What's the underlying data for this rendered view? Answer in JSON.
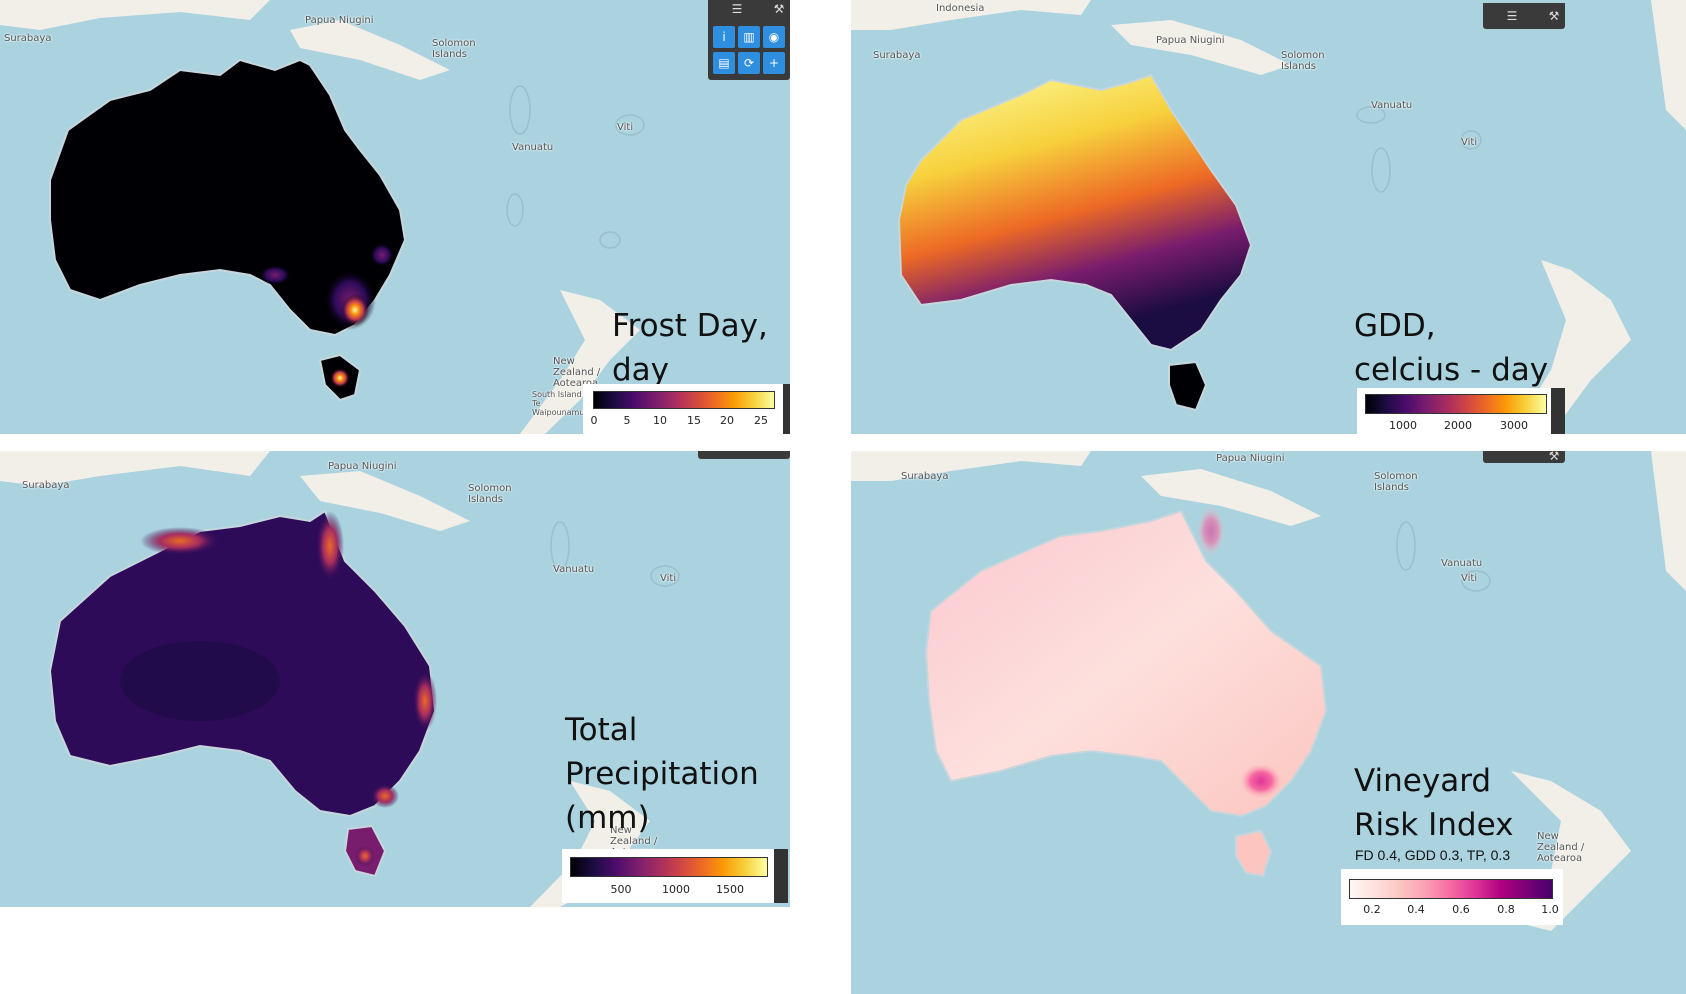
{
  "colors": {
    "ocean": "#aad3df",
    "land": "#f2efe9",
    "inferno": [
      "#000004",
      "#1b0c41",
      "#4a0c6b",
      "#781c6d",
      "#a52c60",
      "#cf4446",
      "#ed6925",
      "#fb9b06",
      "#f7d13d",
      "#fcffa4"
    ],
    "pink": [
      "#fff7f3",
      "#fde0dd",
      "#fcc5c0",
      "#fa9fb5",
      "#f768a1",
      "#dd3497",
      "#ae017e",
      "#7a0177",
      "#49006a"
    ]
  },
  "panels": [
    {
      "id": "frost",
      "title_lines": [
        "Frost Day,",
        "day"
      ],
      "subtitle": "",
      "colormap": "inferno",
      "legend_ticks": [
        "0",
        "5",
        "10",
        "15",
        "20",
        "25"
      ],
      "places": [
        "Surabaya",
        "Papua Niugini",
        "Solomon Islands",
        "Vanuatu",
        "Viti",
        "New Zealand / Aotearoa",
        "South Island / Te Waipounamu"
      ]
    },
    {
      "id": "gdd",
      "title_lines": [
        "GDD,",
        "celcius - day"
      ],
      "subtitle": "",
      "colormap": "inferno",
      "legend_ticks": [
        "1000",
        "2000",
        "3000"
      ],
      "places": [
        "Indonesia",
        "Surabaya",
        "Papua Niugini",
        "Solomon Islands",
        "Vanuatu",
        "Viti"
      ]
    },
    {
      "id": "precip",
      "title_lines": [
        "Total",
        "Precipitation",
        "(mm)"
      ],
      "subtitle": "",
      "colormap": "inferno",
      "legend_ticks": [
        "500",
        "1000",
        "1500"
      ],
      "places": [
        "Surabaya",
        "Papua Niugini",
        "Solomon Islands",
        "Vanuatu",
        "Viti",
        "New Zealand / Aotearoa"
      ]
    },
    {
      "id": "risk",
      "title_lines": [
        "Vineyard",
        "Risk Index"
      ],
      "subtitle": "FD 0.4, GDD 0.3, TP, 0.3",
      "colormap": "pink",
      "legend_ticks": [
        "0.2",
        "0.4",
        "0.6",
        "0.8",
        "1.0"
      ],
      "places": [
        "Surabaya",
        "Papua Niugini",
        "Solomon Islands",
        "Vanuatu",
        "Viti",
        "New Zealand / Aotearoa"
      ]
    }
  ],
  "toolbar": {
    "top_icons": [
      "layers-icon",
      "wrench-icon"
    ],
    "buttons": [
      {
        "name": "info-button",
        "glyph": "i"
      },
      {
        "name": "chart-button",
        "glyph": "▥"
      },
      {
        "name": "globe-button",
        "glyph": "◉"
      },
      {
        "name": "map-button",
        "glyph": "▤"
      },
      {
        "name": "refresh-button",
        "glyph": "⟳"
      },
      {
        "name": "add-button",
        "glyph": "+"
      }
    ]
  }
}
